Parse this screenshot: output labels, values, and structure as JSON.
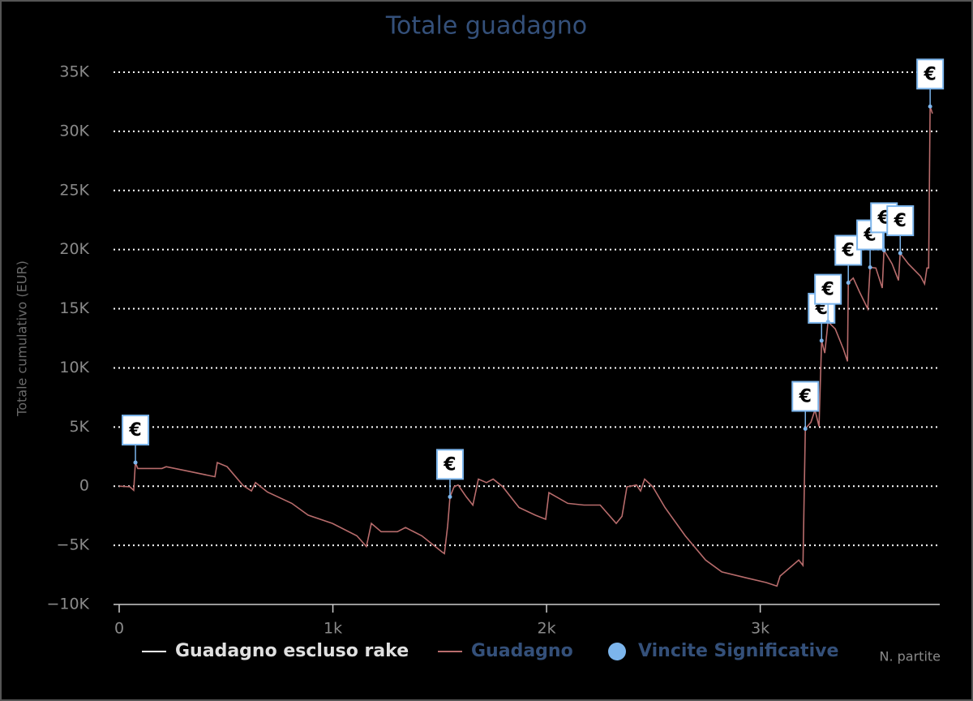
{
  "chart_data": {
    "type": "line",
    "title": "Totale guadagno",
    "y_label": "Totale cumulativo (EUR)",
    "x_label": "N. partite",
    "xlim": [
      0,
      3840
    ],
    "xticks": [
      0,
      {
        "value": 1000,
        "label": "1k"
      },
      {
        "value": 2000,
        "label": "2k"
      },
      {
        "value": 3000,
        "label": "3k"
      }
    ],
    "ylim": [
      -10000,
      35000
    ],
    "yticks": [
      {
        "value": -10000,
        "label": "−10K"
      },
      {
        "value": -5000,
        "label": "−5K"
      },
      0,
      {
        "value": 5000,
        "label": "5K"
      },
      {
        "value": 10000,
        "label": "10K"
      },
      {
        "value": 15000,
        "label": "15K"
      },
      {
        "value": 20000,
        "label": "20K"
      },
      {
        "value": 25000,
        "label": "25K"
      },
      {
        "value": 30000,
        "label": "30K"
      },
      {
        "value": 35000,
        "label": "35K"
      }
    ],
    "grid": true,
    "legend": "bottom",
    "series": [
      {
        "name": "Guadagno escluso rake",
        "color": "#ffffff",
        "visible": false
      },
      {
        "name": "Guadagno",
        "color": "#b86c6c",
        "type": "line",
        "x": [
          0,
          50,
          68,
          76,
          87,
          200,
          220,
          315,
          448,
          459,
          505,
          580,
          619,
          638,
          694,
          808,
          884,
          998,
          1112,
          1157,
          1180,
          1226,
          1302,
          1340,
          1416,
          1510,
          1522,
          1537,
          1548,
          1567,
          1586,
          1624,
          1655,
          1681,
          1719,
          1750,
          1795,
          1871,
          1947,
          1996,
          2011,
          2099,
          2175,
          2251,
          2326,
          2353,
          2376,
          2421,
          2440,
          2459,
          2497,
          2554,
          2649,
          2744,
          2820,
          2934,
          3028,
          3078,
          3093,
          3180,
          3200,
          3211,
          3237,
          3256,
          3275,
          3287,
          3302,
          3317,
          3351,
          3389,
          3408,
          3412,
          3435,
          3465,
          3503,
          3514,
          3541,
          3571,
          3579,
          3617,
          3647,
          3655,
          3693,
          3750,
          3769,
          3780,
          3788,
          3795,
          3806
        ],
        "values": [
          0,
          -50,
          -350,
          2000,
          1500,
          1500,
          1650,
          1300,
          800,
          2000,
          1650,
          50,
          -400,
          300,
          -500,
          -1450,
          -2450,
          -3150,
          -4200,
          -5100,
          -3150,
          -3850,
          -3850,
          -3500,
          -4200,
          -5550,
          -5700,
          -3350,
          -900,
          -50,
          100,
          -900,
          -1600,
          600,
          300,
          600,
          -50,
          -1800,
          -2450,
          -2800,
          -550,
          -1450,
          -1600,
          -1600,
          -3150,
          -2550,
          -50,
          100,
          -400,
          600,
          -50,
          -1800,
          -4200,
          -6250,
          -7250,
          -7750,
          -8150,
          -8450,
          -7600,
          -6250,
          -6700,
          4850,
          5400,
          6450,
          5050,
          12300,
          11250,
          13900,
          13300,
          11600,
          10550,
          17200,
          17600,
          16400,
          15000,
          18500,
          18450,
          16750,
          19950,
          18800,
          17400,
          19700,
          18800,
          17750,
          17100,
          18450,
          18450,
          32100,
          31500
        ]
      },
      {
        "name": "Vincite Significative",
        "color": "#7cb5ec",
        "type": "scatter",
        "flag_label": "€",
        "x": [
          76,
          1548,
          3211,
          3287,
          3317,
          3412,
          3514,
          3579,
          3655,
          3795
        ],
        "values": [
          2000,
          -900,
          4850,
          12300,
          13900,
          17200,
          18500,
          19950,
          19700,
          32100
        ]
      }
    ]
  }
}
